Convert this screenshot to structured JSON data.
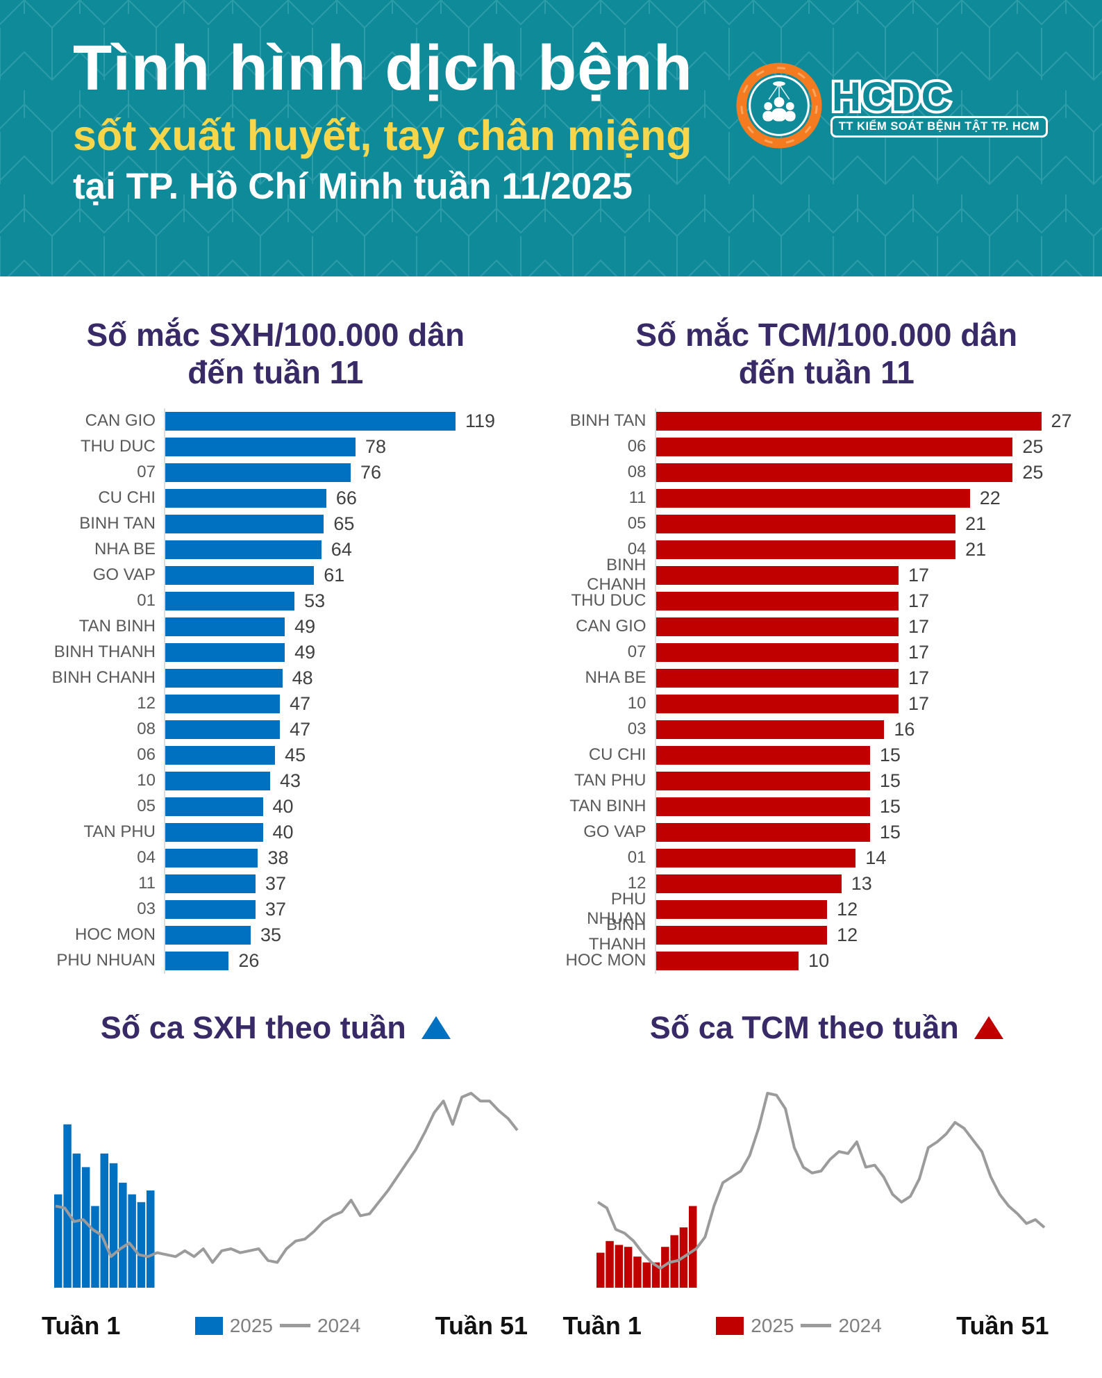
{
  "header": {
    "title_line1": "Tình hình dịch bệnh",
    "title_line2": "sốt xuất huyết, tay chân miệng",
    "title_line3": "tại TP. Hồ Chí Minh tuần 11/2025",
    "logo": {
      "acronym": "HCDC",
      "subtitle": "TT KIỂM SOÁT BỆNH TẬT TP. HCM"
    }
  },
  "colors": {
    "teal": "#0F8A99",
    "yellow": "#F7D64B",
    "purple": "#382A66",
    "blue": "#0070C0",
    "red": "#C00000",
    "label_gray": "#595959",
    "line_gray": "#9B9B9B"
  },
  "chart_data": [
    {
      "id": "sxh_rate",
      "type": "bar",
      "orientation": "horizontal",
      "title_line1": "Số mắc SXH/100.000 dân",
      "title_line2": "đến tuần 11",
      "color": "#0070C0",
      "max": 119,
      "categories": [
        "CAN GIO",
        "THU DUC",
        "07",
        "CU CHI",
        "BINH TAN",
        "NHA BE",
        "GO VAP",
        "01",
        "TAN BINH",
        "BINH THANH",
        "BINH CHANH",
        "12",
        "08",
        "06",
        "10",
        "05",
        "TAN PHU",
        "04",
        "11",
        "03",
        "HOC MON",
        "PHU NHUAN"
      ],
      "values": [
        119,
        78,
        76,
        66,
        65,
        64,
        61,
        53,
        49,
        49,
        48,
        47,
        47,
        45,
        43,
        40,
        40,
        38,
        37,
        37,
        35,
        26
      ]
    },
    {
      "id": "tcm_rate",
      "type": "bar",
      "orientation": "horizontal",
      "title_line1": "Số mắc TCM/100.000 dân",
      "title_line2": "đến tuần 11",
      "color": "#C00000",
      "max": 27,
      "categories": [
        "BINH TAN",
        "06",
        "08",
        "11",
        "05",
        "04",
        "BINH CHANH",
        "THU DUC",
        "CAN GIO",
        "07",
        "NHA BE",
        "10",
        "03",
        "CU CHI",
        "TAN PHU",
        "TAN BINH",
        "GO VAP",
        "01",
        "12",
        "PHU NHUAN",
        "BINH THANH",
        "HOC MON"
      ],
      "values": [
        27,
        25,
        25,
        22,
        21,
        21,
        17,
        17,
        17,
        17,
        17,
        17,
        16,
        15,
        15,
        15,
        15,
        14,
        13,
        12,
        12,
        10
      ]
    },
    {
      "id": "sxh_weekly",
      "type": "bar+line",
      "title": "Số ca SXH theo tuần",
      "color": "#0070C0",
      "x_start_label": "Tuần 1",
      "x_end_label": "Tuần 51",
      "legend_2025": "2025",
      "legend_2024": "2024",
      "scale_note": "relative units, 2024 yearly peak = 100",
      "bars_2025": [
        48,
        84,
        69,
        62,
        42,
        69,
        64,
        54,
        48,
        44,
        50
      ],
      "line_2024": [
        42,
        41,
        34,
        35,
        30,
        27,
        16,
        20,
        23,
        17,
        16,
        18,
        17,
        16,
        19,
        16,
        20,
        13,
        19,
        20,
        18,
        19,
        20,
        14,
        13,
        20,
        24,
        25,
        29,
        34,
        37,
        39,
        45,
        37,
        38,
        44,
        50,
        57,
        64,
        71,
        80,
        90,
        96,
        84,
        98,
        100,
        96,
        96,
        91,
        87,
        81
      ]
    },
    {
      "id": "tcm_weekly",
      "type": "bar+line",
      "title": "Số ca TCM theo tuần",
      "color": "#C00000",
      "x_start_label": "Tuần 1",
      "x_end_label": "Tuần 51",
      "legend_2025": "2025",
      "legend_2024": "2024",
      "scale_note": "relative units, 2024 yearly peak = 100",
      "bars_2025": [
        18,
        24,
        22,
        21,
        16,
        13,
        13,
        21,
        27,
        31,
        42
      ],
      "line_2024": [
        44,
        41,
        30,
        28,
        24,
        18,
        13,
        10,
        13,
        14,
        17,
        20,
        26,
        42,
        54,
        57,
        60,
        68,
        82,
        100,
        99,
        92,
        72,
        62,
        59,
        60,
        66,
        70,
        69,
        75,
        62,
        63,
        57,
        48,
        44,
        47,
        56,
        72,
        75,
        79,
        85,
        82,
        76,
        70,
        57,
        48,
        42,
        38,
        33,
        35,
        31
      ]
    }
  ]
}
